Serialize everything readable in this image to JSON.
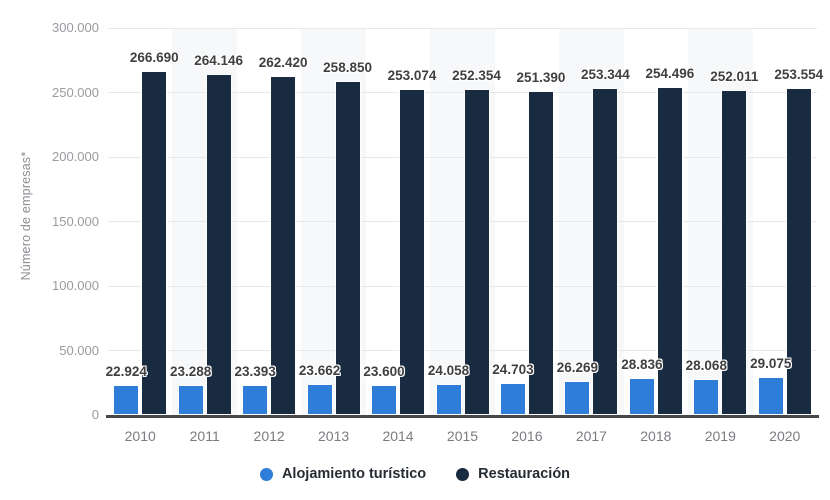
{
  "chart_data": {
    "type": "bar",
    "title": "",
    "xlabel": "",
    "ylabel": "Número de empresas*",
    "categories": [
      "2010",
      "2011",
      "2012",
      "2013",
      "2014",
      "2015",
      "2016",
      "2017",
      "2018",
      "2019",
      "2020"
    ],
    "series": [
      {
        "name": "Alojamiento turístico",
        "color": "#2d7dd9",
        "values": [
          22924,
          23288,
          23393,
          23662,
          23600,
          24058,
          24703,
          26269,
          28836,
          28068,
          29075
        ]
      },
      {
        "name": "Restauración",
        "color": "#182b40",
        "values": [
          266690,
          264146,
          262420,
          258850,
          253074,
          252354,
          251390,
          253344,
          254496,
          252011,
          253554
        ]
      }
    ],
    "ylim": [
      0,
      300000
    ],
    "ytick_step": 50000,
    "ytick_labels": [
      "0",
      "50.000",
      "100.000",
      "150.000",
      "200.000",
      "250.000",
      "300.000"
    ],
    "grid": true,
    "plot_bands": "alternate-categories",
    "legend_position": "bottom",
    "number_format": "thousands-dot"
  },
  "colors": {
    "background": "#ffffff",
    "plot_band": "#f7f8fa",
    "gridline": "#e7e8ea",
    "axis_line": "#47484a",
    "data_label": "#404043",
    "tick_label": "#9a9aa0",
    "category_label": "#7b7b81",
    "legend_text": "#262c33"
  }
}
